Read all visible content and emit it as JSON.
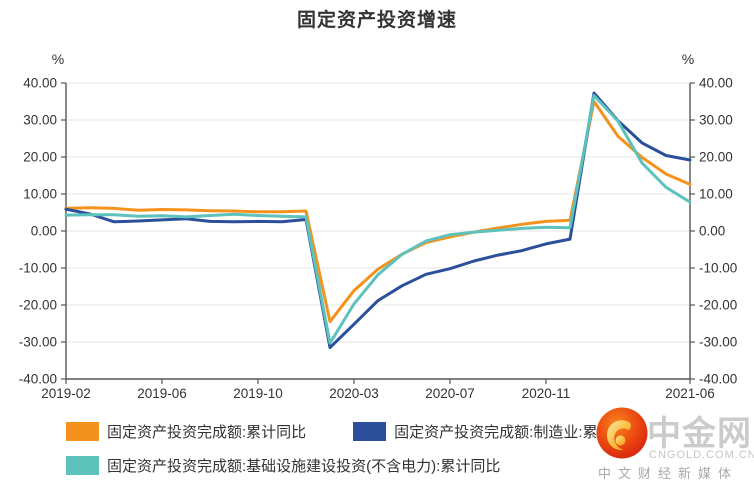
{
  "title": "固定资产投资增速",
  "chart_data": {
    "type": "line",
    "x": [
      "2019-02",
      "2019-03",
      "2019-04",
      "2019-05",
      "2019-06",
      "2019-07",
      "2019-08",
      "2019-09",
      "2019-10",
      "2019-11",
      "2019-12",
      "2020-02",
      "2020-03",
      "2020-04",
      "2020-05",
      "2020-06",
      "2020-07",
      "2020-08",
      "2020-09",
      "2020-10",
      "2020-11",
      "2020-12",
      "2021-02",
      "2021-03",
      "2021-04",
      "2021-05",
      "2021-06"
    ],
    "x_tick_labels": [
      "2019-02",
      "2019-06",
      "2019-10",
      "2020-03",
      "2020-07",
      "2020-11",
      "2021-06"
    ],
    "x_tick_indices": [
      0,
      4,
      8,
      12,
      16,
      20,
      26
    ],
    "series": [
      {
        "name": "固定资产投资完成额:累计同比",
        "color": "#F5921E",
        "values": [
          6.1,
          6.3,
          6.1,
          5.6,
          5.8,
          5.7,
          5.5,
          5.4,
          5.2,
          5.2,
          5.4,
          -24.5,
          -16.1,
          -10.3,
          -6.3,
          -3.1,
          -1.6,
          -0.3,
          0.8,
          1.8,
          2.6,
          2.9,
          35.0,
          25.6,
          19.9,
          15.4,
          12.6
        ]
      },
      {
        "name": "固定资产投资完成额:制造业:累计同比",
        "color": "#2C4F9C",
        "values": [
          5.9,
          4.6,
          2.5,
          2.7,
          3.0,
          3.3,
          2.6,
          2.5,
          2.6,
          2.5,
          3.1,
          -31.5,
          -25.2,
          -18.8,
          -14.8,
          -11.7,
          -10.2,
          -8.1,
          -6.5,
          -5.3,
          -3.5,
          -2.2,
          37.3,
          29.8,
          23.8,
          20.4,
          19.2
        ]
      },
      {
        "name": "固定资产投资完成额:基础设施建设投资(不含电力):累计同比",
        "color": "#5EC2BC",
        "values": [
          4.3,
          4.4,
          4.4,
          4.0,
          4.1,
          3.8,
          4.2,
          4.5,
          4.2,
          4.0,
          3.8,
          -30.3,
          -19.7,
          -11.8,
          -6.3,
          -2.7,
          -1.0,
          -0.3,
          0.2,
          0.7,
          1.0,
          0.9,
          36.6,
          29.7,
          18.4,
          11.8,
          7.8
        ]
      }
    ],
    "ylim": [
      -40,
      40
    ],
    "y_tick_step": 10,
    "y_tick_labels": [
      "40.00",
      "30.00",
      "20.00",
      "10.00",
      "0.00",
      "-10.00",
      "-20.00",
      "-30.00",
      "-40.00"
    ],
    "unit_left": "%",
    "unit_right": "%",
    "grid": true,
    "legend_position": "bottom"
  },
  "colors": {
    "axis": "#555555",
    "grid": "#E7E7E7",
    "text": "#333333"
  },
  "watermark": {
    "brand": "中金网",
    "domain": "CNGOLD.COM.CN",
    "tagline": "中文财经新媒体"
  }
}
